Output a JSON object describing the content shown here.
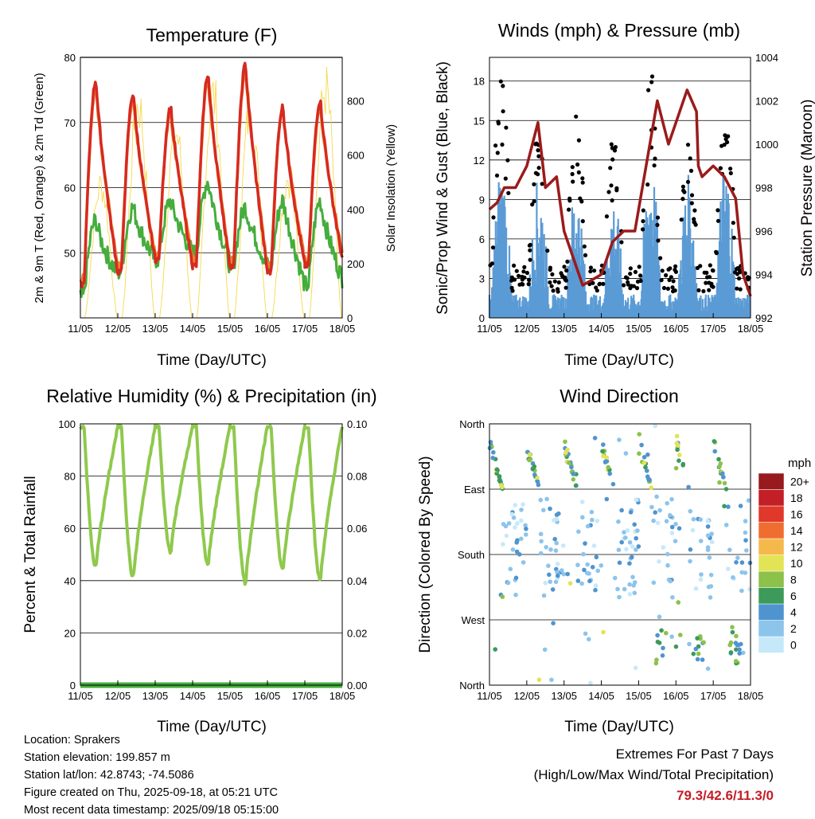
{
  "days": [
    "11/05",
    "12/05",
    "13/05",
    "14/05",
    "15/05",
    "16/05",
    "17/05",
    "18/05"
  ],
  "colors": {
    "temp2m": "#d62a1f",
    "temp9m": "#f07f32",
    "dew": "#45ad3d",
    "solar": "#f5d94a",
    "wind": "#5b9bd5",
    "gust": "#000000",
    "pressure": "#9b1b1b",
    "rh": "#8fc94d",
    "precip": "#45ad3d"
  },
  "panels": {
    "temperature": {
      "title": "Temperature (F)",
      "xlabel": "Time (Day/UTC)",
      "ylabel": "2m & 9m T (Red, Orange) & 2m Td (Green)",
      "y2label": "Solar Insolation (Yellow)",
      "ylim": [
        40,
        80
      ],
      "yticks": [
        50,
        60,
        70,
        80
      ],
      "y2lim": [
        0,
        960
      ],
      "y2ticks": [
        0,
        200,
        400,
        600,
        800
      ]
    },
    "wind": {
      "title": "Winds (mph) & Pressure (mb)",
      "xlabel": "Time (Day/UTC)",
      "ylabel": "Sonic/Prop Wind & Gust (Blue, Black)",
      "y2label": "Station Pressure (Maroon)",
      "ylim": [
        0,
        19.8
      ],
      "yticks": [
        0,
        3,
        6,
        9,
        12,
        15,
        18
      ],
      "y2lim": [
        992,
        1004
      ],
      "y2ticks": [
        992,
        994,
        996,
        998,
        1000,
        1002,
        1004
      ]
    },
    "rh": {
      "title": "Relative Humidity (%) & Precipitation (in)",
      "xlabel": "Time (Day/UTC)",
      "ylabel": "Percent & Total Rainfall",
      "ylim": [
        0,
        100
      ],
      "yticks": [
        0,
        20,
        40,
        60,
        80,
        100
      ],
      "y2ticks": [
        "0.00",
        "0.02",
        "0.04",
        "0.06",
        "0.08",
        "0.10"
      ]
    },
    "direction": {
      "title": "Wind Direction",
      "xlabel": "Time (Day/UTC)",
      "ylabel": "Direction (Colored By Speed)",
      "yticks": [
        "North",
        "East",
        "South",
        "West",
        "North"
      ],
      "legend_title": "mph",
      "legend_labels": [
        "0",
        "2",
        "4",
        "6",
        "8",
        "10",
        "12",
        "14",
        "16",
        "18",
        "20+"
      ],
      "legend_colors": [
        "#c6e9fa",
        "#8cc4ec",
        "#4f94cf",
        "#3c9a5a",
        "#8cc14a",
        "#e3e356",
        "#f5b84b",
        "#f06d30",
        "#e0382a",
        "#c21f26",
        "#971a1e"
      ]
    }
  },
  "chart_data": [
    {
      "type": "line",
      "title": "Temperature (F)",
      "xlabel": "Time (Day/UTC)",
      "ylabel": "2m & 9m T (Red, Orange) & 2m Td (Green)",
      "y2label": "Solar Insolation (Yellow)",
      "x": [
        "11/05",
        "12/05",
        "13/05",
        "14/05",
        "15/05",
        "16/05",
        "17/05",
        "18/05"
      ],
      "ylim": [
        40,
        80
      ],
      "y2lim": [
        0,
        960
      ],
      "series": [
        {
          "axis": "left",
          "color": "#d62a1f",
          "daily_min": [
            45,
            47,
            49,
            48,
            48,
            47,
            48,
            49
          ],
          "daily_max": [
            76.5,
            74.5,
            72.5,
            77.5,
            79.0,
            72.5,
            73.5
          ]
        },
        {
          "axis": "left",
          "color": "#f07f32",
          "daily_min": [
            46,
            48,
            50,
            49,
            49,
            48,
            49,
            50
          ],
          "daily_max": [
            75.5,
            73.5,
            71.5,
            76.5,
            78.0,
            72.0,
            72.5
          ]
        },
        {
          "axis": "left",
          "color": "#45ad3d",
          "daily_min": [
            43,
            47,
            49,
            50,
            48,
            48,
            45,
            46
          ],
          "daily_max": [
            55,
            57,
            58,
            61,
            57,
            58,
            58
          ]
        },
        {
          "axis": "right",
          "color": "#f5d94a",
          "daily_peak": [
            560,
            900,
            780,
            930,
            880,
            590,
            960
          ]
        }
      ],
      "extremes": {
        "high": 79.3,
        "low": 42.6
      }
    },
    {
      "type": "scatter",
      "title": "Winds (mph) & Pressure (mb)",
      "xlabel": "Time (Day/UTC)",
      "ylabel": "Sonic/Prop Wind & Gust (Blue, Black)",
      "y2label": "Station Pressure (Maroon)",
      "x": [
        "11/05",
        "12/05",
        "13/05",
        "14/05",
        "15/05",
        "16/05",
        "17/05",
        "18/05"
      ],
      "ylim": [
        0,
        19.8
      ],
      "y2lim": [
        992,
        1004
      ],
      "series": [
        {
          "axis": "left",
          "color": "#5b9bd5",
          "daily_peak": [
            10.5,
            9.5,
            9.0,
            8.0,
            11.0,
            9.5,
            11.0
          ]
        },
        {
          "axis": "left",
          "color": "#000000",
          "daily_peak": [
            18.0,
            14.0,
            15.5,
            13.5,
            17.5,
            12.5,
            16.5
          ]
        },
        {
          "axis": "right",
          "color": "#9b1b1b",
          "x_days": [
            0,
            0.2,
            0.4,
            0.7,
            1.0,
            1.3,
            1.5,
            1.8,
            2.0,
            2.5,
            3.0,
            3.3,
            3.6,
            3.9,
            4.2,
            4.5,
            4.8,
            5.0,
            5.3,
            5.55,
            5.6,
            5.7,
            6.0,
            6.3,
            6.6,
            6.8,
            7.0
          ],
          "values": [
            997,
            997.3,
            998,
            998,
            999,
            1001,
            998,
            998.5,
            996,
            993.5,
            994,
            995.5,
            996,
            996,
            999,
            1002,
            1000,
            1001,
            1002.5,
            1001.5,
            999,
            998.5,
            999,
            998.5,
            997.5,
            994,
            993
          ]
        }
      ],
      "extremes": {
        "max_wind": 11.3
      }
    },
    {
      "type": "line",
      "title": "Relative Humidity (%) & Precipitation (in)",
      "xlabel": "Time (Day/UTC)",
      "ylabel": "Percent & Total Rainfall",
      "x": [
        "11/05",
        "12/05",
        "13/05",
        "14/05",
        "15/05",
        "16/05",
        "17/05",
        "18/05"
      ],
      "ylim": [
        0,
        100
      ],
      "y2lim": [
        0,
        0.1
      ],
      "series": [
        {
          "axis": "left",
          "color": "#8fc94d",
          "daily_min": [
            45,
            41,
            51,
            46,
            39,
            44,
            40
          ],
          "daily_max": [
            100,
            100,
            100,
            100,
            100,
            100,
            100
          ]
        },
        {
          "axis": "right",
          "color": "#45ad3d",
          "values": [
            0,
            0,
            0,
            0,
            0,
            0,
            0,
            0
          ]
        }
      ],
      "extremes": {
        "total_precip": 0
      }
    },
    {
      "type": "scatter",
      "title": "Wind Direction",
      "xlabel": "Time (Day/UTC)",
      "ylabel": "Direction (Colored By Speed)",
      "x": [
        "11/05",
        "12/05",
        "13/05",
        "14/05",
        "15/05",
        "16/05",
        "17/05",
        "18/05"
      ],
      "y_categories": [
        "North",
        "East",
        "South",
        "West",
        "North"
      ],
      "legend_title": "mph",
      "legend": [
        "0",
        "2",
        "4",
        "6",
        "8",
        "10",
        "12",
        "14",
        "16",
        "18",
        "20+"
      ]
    }
  ],
  "footer": {
    "location": "Location: Sprakers",
    "elevation": "Station elevation: 199.857 m",
    "latlon": "Station lat/lon: 42.8743; -74.5086",
    "created": "Figure created on Thu, 2025-09-18, at 05:21 UTC",
    "recent": "Most recent data timestamp: 2025/09/18 05:15:00"
  },
  "extremes": {
    "heading": "Extremes For Past 7 Days",
    "subheading": "(High/Low/Max Wind/Total Precipitation)",
    "value": "79.3/42.6/11.3/0"
  }
}
